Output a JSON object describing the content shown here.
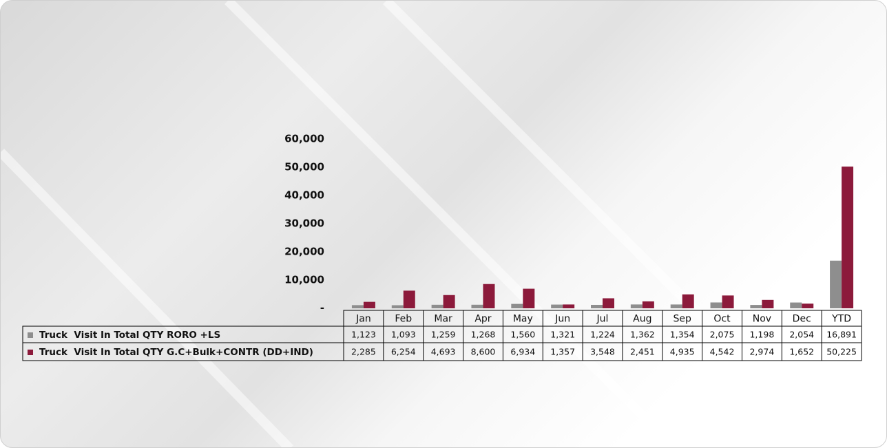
{
  "chart_data": {
    "type": "bar",
    "categories": [
      "Jan",
      "Feb",
      "Mar",
      "Apr",
      "May",
      "Jun",
      "Jul",
      "Aug",
      "Sep",
      "Oct",
      "Nov",
      "Dec",
      "YTD"
    ],
    "series": [
      {
        "name": "Truck  Visit In Total QTY RORO +LS",
        "color": "#8e8e8e",
        "values": [
          1123,
          1093,
          1259,
          1268,
          1560,
          1321,
          1224,
          1362,
          1354,
          2075,
          1198,
          2054,
          16891
        ],
        "value_labels": [
          "1,123",
          "1,093",
          "1,259",
          "1,268",
          "1,560",
          "1,321",
          "1,224",
          "1,362",
          "1,354",
          "2,075",
          "1,198",
          "2,054",
          "16,891"
        ]
      },
      {
        "name": "Truck  Visit In Total QTY G.C+Bulk+CONTR (DD+IND)",
        "color": "#8c1a3b",
        "values": [
          2285,
          6254,
          4693,
          8600,
          6934,
          1357,
          3548,
          2451,
          4935,
          4542,
          2974,
          1652,
          50225
        ],
        "value_labels": [
          "2,285",
          "6,254",
          "4,693",
          "8,600",
          "6,934",
          "1,357",
          "3,548",
          "2,451",
          "4,935",
          "4,542",
          "2,974",
          "1,652",
          "50,225"
        ]
      }
    ],
    "ylim": [
      0,
      60000
    ],
    "yticks": [
      {
        "value": 0,
        "label": "-"
      },
      {
        "value": 10000,
        "label": "10,000"
      },
      {
        "value": 20000,
        "label": "20,000"
      },
      {
        "value": 30000,
        "label": "30,000"
      },
      {
        "value": 40000,
        "label": "40,000"
      },
      {
        "value": 50000,
        "label": "50,000"
      },
      {
        "value": 60000,
        "label": "60,000"
      }
    ],
    "grid": false
  }
}
